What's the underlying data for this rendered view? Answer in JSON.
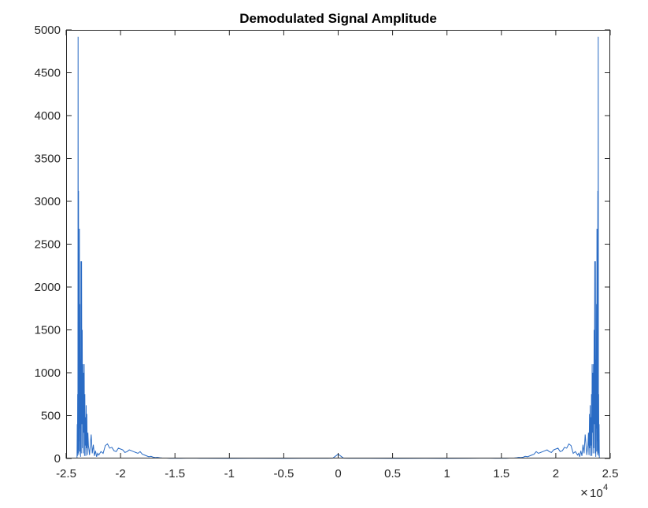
{
  "chart_data": {
    "type": "line",
    "title": "Demodulated Signal Amplitude",
    "xlabel": "",
    "ylabel": "",
    "xlim": [
      -2.5,
      2.5
    ],
    "ylim": [
      0,
      5000
    ],
    "x_ticks": [
      -2.5,
      -2,
      -1.5,
      -1,
      -0.5,
      0,
      0.5,
      1,
      1.5,
      2,
      2.5
    ],
    "x_tick_labels": [
      "-2.5",
      "-2",
      "-1.5",
      "-1",
      "-0.5",
      "0",
      "0.5",
      "1",
      "1.5",
      "2",
      "2.5"
    ],
    "y_ticks": [
      0,
      500,
      1000,
      1500,
      2000,
      2500,
      3000,
      3500,
      4000,
      4500,
      5000
    ],
    "y_tick_labels": [
      "0",
      "500",
      "1000",
      "1500",
      "2000",
      "2500",
      "3000",
      "3500",
      "4000",
      "4500",
      "5000"
    ],
    "x_multiplier": {
      "times": "×",
      "base": "10",
      "exponent": "4"
    },
    "grid": false,
    "line_color": "#2a6bc4",
    "series": [
      {
        "x": [
          -2.4,
          -2.398,
          -2.396,
          -2.394,
          -2.392,
          -2.39,
          -2.388,
          -2.386,
          -2.384,
          -2.382,
          -2.38,
          -2.378,
          -2.376,
          -2.374,
          -2.372,
          -2.37,
          -2.367,
          -2.364,
          -2.361,
          -2.358,
          -2.355,
          -2.352,
          -2.349,
          -2.346,
          -2.343,
          -2.34,
          -2.337,
          -2.334,
          -2.331,
          -2.328,
          -2.325,
          -2.322,
          -2.319,
          -2.316,
          -2.313,
          -2.31,
          -2.305,
          -2.3,
          -2.295,
          -2.29,
          -2.285,
          -2.28,
          -2.27,
          -2.26,
          -2.25,
          -2.24,
          -2.23,
          -2.22,
          -2.21,
          -2.2,
          -2.18,
          -2.16,
          -2.14,
          -2.12,
          -2.1,
          -2.08,
          -2.06,
          -2.04,
          -2.02,
          -2.0,
          -1.98,
          -1.96,
          -1.94,
          -1.92,
          -1.9,
          -1.88,
          -1.86,
          -1.84,
          -1.82,
          -1.8,
          -1.78,
          -1.76,
          -1.74,
          -1.72,
          -1.7,
          -1.68,
          -1.66,
          -1.64,
          -1.62,
          -1.6,
          -1.58,
          -1.56,
          -1.54,
          -1.52,
          -1.5,
          -1.45,
          -1.4,
          -1.3,
          -1.2,
          -1.0,
          -0.8,
          -0.5,
          -0.3,
          -0.1,
          -0.05,
          0.0,
          0.05,
          0.1,
          0.3,
          0.5,
          0.8,
          1.0,
          1.2,
          1.3,
          1.4,
          1.45,
          1.5,
          1.52,
          1.54,
          1.56,
          1.58,
          1.6,
          1.62,
          1.64,
          1.66,
          1.68,
          1.7,
          1.72,
          1.74,
          1.76,
          1.78,
          1.8,
          1.82,
          1.84,
          1.86,
          1.88,
          1.9,
          1.92,
          1.94,
          1.96,
          1.98,
          2.0,
          2.02,
          2.04,
          2.06,
          2.08,
          2.1,
          2.12,
          2.14,
          2.16,
          2.18,
          2.2,
          2.21,
          2.22,
          2.23,
          2.24,
          2.25,
          2.26,
          2.27,
          2.28,
          2.285,
          2.29,
          2.295,
          2.3,
          2.305,
          2.31,
          2.313,
          2.316,
          2.319,
          2.322,
          2.325,
          2.328,
          2.331,
          2.334,
          2.337,
          2.34,
          2.343,
          2.346,
          2.349,
          2.352,
          2.355,
          2.358,
          2.361,
          2.364,
          2.367,
          2.37,
          2.372,
          2.374,
          2.376,
          2.378,
          2.38,
          2.382,
          2.384,
          2.386,
          2.388,
          2.39,
          2.392,
          2.394,
          2.396,
          2.398,
          2.4
        ],
        "y": [
          0,
          400,
          30,
          750,
          60,
          4920,
          100,
          3120,
          40,
          1300,
          200,
          2680,
          80,
          1800,
          350,
          1150,
          20,
          2300,
          60,
          2300,
          400,
          1500,
          120,
          1100,
          60,
          1000,
          300,
          1100,
          30,
          750,
          150,
          480,
          30,
          620,
          120,
          520,
          40,
          300,
          150,
          100,
          40,
          120,
          280,
          60,
          160,
          30,
          90,
          20,
          60,
          40,
          80,
          60,
          150,
          170,
          120,
          130,
          90,
          80,
          120,
          110,
          100,
          70,
          80,
          100,
          90,
          80,
          70,
          60,
          80,
          50,
          40,
          30,
          20,
          25,
          15,
          10,
          12,
          8,
          6,
          5,
          4,
          3,
          2,
          2,
          2,
          2,
          3,
          3,
          2,
          1,
          2,
          1,
          2,
          2,
          3,
          50,
          3,
          2,
          2,
          1,
          2,
          1,
          2,
          3,
          3,
          2,
          2,
          2,
          2,
          3,
          4,
          5,
          6,
          8,
          12,
          10,
          15,
          25,
          20,
          30,
          40,
          50,
          80,
          60,
          70,
          80,
          90,
          100,
          80,
          70,
          100,
          110,
          120,
          80,
          90,
          130,
          120,
          170,
          150,
          60,
          80,
          40,
          60,
          20,
          90,
          30,
          160,
          60,
          280,
          120,
          40,
          100,
          150,
          300,
          40,
          520,
          120,
          620,
          30,
          480,
          150,
          750,
          30,
          1100,
          300,
          1000,
          60,
          1100,
          120,
          1500,
          400,
          2300,
          60,
          2300,
          20,
          1150,
          350,
          1800,
          80,
          2680,
          200,
          1300,
          40,
          3120,
          100,
          4920,
          60,
          750,
          30,
          400,
          0
        ]
      }
    ]
  }
}
